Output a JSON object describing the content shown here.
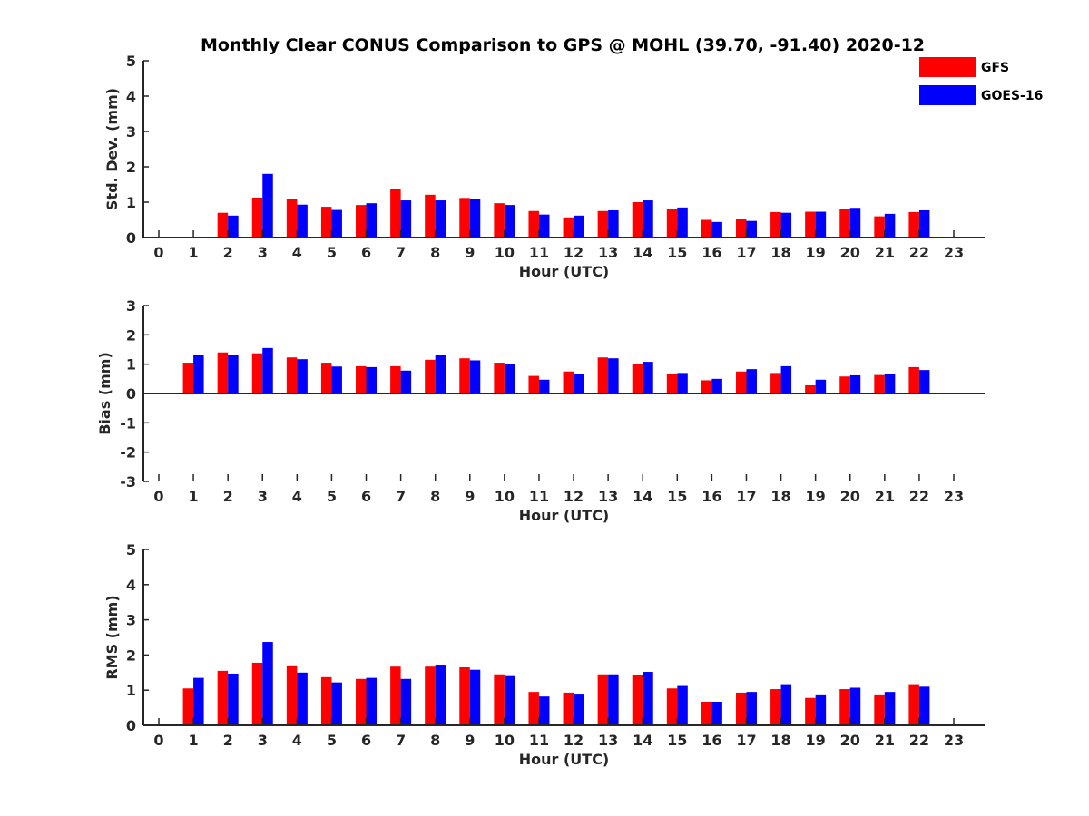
{
  "title": "Monthly Clear CONUS Comparison to GPS @ MOHL (39.70, -91.40) 2020-12",
  "legend": {
    "placement": "top-right",
    "entries": [
      {
        "name": "GFS",
        "color": "#ff0000"
      },
      {
        "name": "GOES-16",
        "color": "#0000ff"
      }
    ]
  },
  "chart_data": [
    {
      "type": "bar",
      "xlabel": "Hour (UTC)",
      "ylabel": "Std. Dev. (mm)",
      "ylim": [
        0,
        5
      ],
      "yticks": [
        0,
        1,
        2,
        3,
        4,
        5
      ],
      "x": [
        0,
        1,
        2,
        3,
        4,
        5,
        6,
        7,
        8,
        9,
        10,
        11,
        12,
        13,
        14,
        15,
        16,
        17,
        18,
        19,
        20,
        21,
        22,
        23
      ],
      "series": [
        {
          "name": "GFS",
          "color": "#ff0000",
          "values": [
            null,
            null,
            0.7,
            1.13,
            1.1,
            0.87,
            0.92,
            1.38,
            1.21,
            1.12,
            0.97,
            0.75,
            0.57,
            0.75,
            1.0,
            0.8,
            0.5,
            0.53,
            0.72,
            0.73,
            0.82,
            0.6,
            0.72,
            null
          ]
        },
        {
          "name": "GOES-16",
          "color": "#0000ff",
          "values": [
            null,
            null,
            0.62,
            1.8,
            0.93,
            0.78,
            0.97,
            1.05,
            1.05,
            1.08,
            0.92,
            0.65,
            0.62,
            0.77,
            1.05,
            0.85,
            0.44,
            0.47,
            0.7,
            0.73,
            0.84,
            0.67,
            0.77,
            null
          ]
        }
      ]
    },
    {
      "type": "bar",
      "xlabel": "Hour (UTC)",
      "ylabel": "Bias (mm)",
      "ylim": [
        -3,
        3
      ],
      "yticks": [
        -3,
        -2,
        -1,
        0,
        1,
        2,
        3
      ],
      "x": [
        0,
        1,
        2,
        3,
        4,
        5,
        6,
        7,
        8,
        9,
        10,
        11,
        12,
        13,
        14,
        15,
        16,
        17,
        18,
        19,
        20,
        21,
        22,
        23
      ],
      "series": [
        {
          "name": "GFS",
          "color": "#ff0000",
          "values": [
            null,
            1.05,
            1.4,
            1.37,
            1.23,
            1.05,
            0.93,
            0.93,
            1.15,
            1.2,
            1.05,
            0.6,
            0.75,
            1.23,
            1.02,
            0.68,
            0.45,
            0.75,
            0.7,
            0.28,
            0.58,
            0.63,
            0.9,
            null
          ]
        },
        {
          "name": "GOES-16",
          "color": "#0000ff",
          "values": [
            null,
            1.33,
            1.3,
            1.55,
            1.17,
            0.92,
            0.9,
            0.78,
            1.3,
            1.13,
            1.0,
            0.47,
            0.65,
            1.2,
            1.08,
            0.7,
            0.5,
            0.83,
            0.93,
            0.47,
            0.62,
            0.68,
            0.8,
            null
          ]
        }
      ]
    },
    {
      "type": "bar",
      "xlabel": "Hour (UTC)",
      "ylabel": "RMS (mm)",
      "ylim": [
        0,
        5
      ],
      "yticks": [
        0,
        1,
        2,
        3,
        4,
        5
      ],
      "x": [
        0,
        1,
        2,
        3,
        4,
        5,
        6,
        7,
        8,
        9,
        10,
        11,
        12,
        13,
        14,
        15,
        16,
        17,
        18,
        19,
        20,
        21,
        22,
        23
      ],
      "series": [
        {
          "name": "GFS",
          "color": "#ff0000",
          "values": [
            null,
            1.05,
            1.55,
            1.78,
            1.68,
            1.37,
            1.32,
            1.67,
            1.67,
            1.65,
            1.45,
            0.95,
            0.93,
            1.45,
            1.42,
            1.05,
            0.67,
            0.93,
            1.03,
            0.78,
            1.03,
            0.88,
            1.17,
            null
          ]
        },
        {
          "name": "GOES-16",
          "color": "#0000ff",
          "values": [
            null,
            1.35,
            1.47,
            2.37,
            1.5,
            1.22,
            1.35,
            1.32,
            1.7,
            1.58,
            1.4,
            0.82,
            0.9,
            1.45,
            1.52,
            1.12,
            0.67,
            0.95,
            1.17,
            0.88,
            1.07,
            0.95,
            1.1,
            null
          ]
        }
      ]
    }
  ]
}
